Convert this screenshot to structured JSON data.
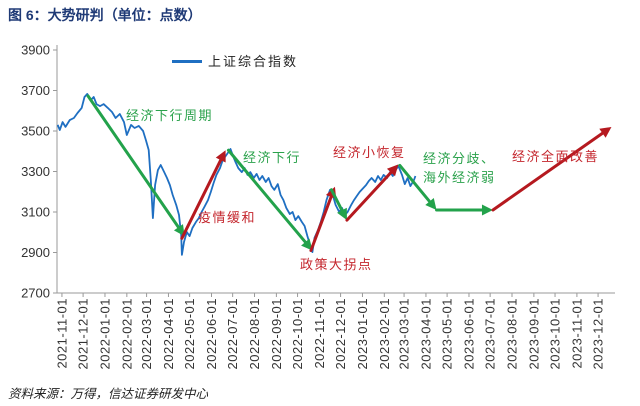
{
  "colors": {
    "title": "#1f3a76"
  },
  "source": "资料来源：万得，信达证券研发中心",
  "chart_data": {
    "type": "line",
    "title": "图 6：大势研判（单位：点数）",
    "xlim": [
      "2021-10-25",
      "2023-12-25"
    ],
    "ylim": [
      2700,
      3900
    ],
    "yticks": [
      3900,
      3700,
      3500,
      3300,
      3100,
      2900,
      2700
    ],
    "xticks": [
      "2021-11-01",
      "2021-12-01",
      "2022-01-01",
      "2022-02-01",
      "2022-03-01",
      "2022-04-01",
      "2022-05-01",
      "2022-06-01",
      "2022-07-01",
      "2022-08-01",
      "2022-09-01",
      "2022-10-01",
      "2022-11-01",
      "2022-12-01",
      "2023-01-01",
      "2023-02-01",
      "2023-03-01",
      "2023-04-01",
      "2023-05-01",
      "2023-06-01",
      "2023-07-01",
      "2023-08-01",
      "2023-09-01",
      "2023-10-01",
      "2023-11-01",
      "2023-12-01"
    ],
    "grid": false,
    "legend": "top-left",
    "series": [
      {
        "name": "上证综合指数",
        "color": "#1f6fc2",
        "x": [
          "2021-10-26",
          "2021-10-29",
          "2021-11-02",
          "2021-11-06",
          "2021-11-12",
          "2021-11-18",
          "2021-11-23",
          "2021-11-29",
          "2021-12-03",
          "2021-12-07",
          "2021-12-12",
          "2021-12-16",
          "2021-12-20",
          "2021-12-25",
          "2021-12-30",
          "2022-01-05",
          "2022-01-11",
          "2022-01-16",
          "2022-01-22",
          "2022-01-28",
          "2022-02-01",
          "2022-02-07",
          "2022-02-12",
          "2022-02-18",
          "2022-02-24",
          "2022-02-28",
          "2022-03-04",
          "2022-03-07",
          "2022-03-10",
          "2022-03-13",
          "2022-03-17",
          "2022-03-21",
          "2022-03-26",
          "2022-03-30",
          "2022-04-03",
          "2022-04-07",
          "2022-04-12",
          "2022-04-16",
          "2022-04-19",
          "2022-04-20",
          "2022-04-23",
          "2022-04-27",
          "2022-05-01",
          "2022-05-05",
          "2022-05-10",
          "2022-05-14",
          "2022-05-18",
          "2022-05-22",
          "2022-05-27",
          "2022-05-31",
          "2022-06-04",
          "2022-06-08",
          "2022-06-13",
          "2022-06-17",
          "2022-06-21",
          "2022-06-25",
          "2022-06-28",
          "2022-07-01",
          "2022-07-05",
          "2022-07-09",
          "2022-07-14",
          "2022-07-18",
          "2022-07-22",
          "2022-07-26",
          "2022-07-31",
          "2022-08-04",
          "2022-08-08",
          "2022-08-12",
          "2022-08-17",
          "2022-08-21",
          "2022-08-25",
          "2022-08-29",
          "2022-09-03",
          "2022-09-07",
          "2022-09-11",
          "2022-09-15",
          "2022-09-20",
          "2022-09-24",
          "2022-09-28",
          "2022-10-02",
          "2022-10-07",
          "2022-10-11",
          "2022-10-15",
          "2022-10-20",
          "2022-10-22",
          "2022-10-25",
          "2022-10-30",
          "2022-11-03",
          "2022-11-07",
          "2022-11-11",
          "2022-11-16",
          "2022-11-20",
          "2022-11-24",
          "2022-11-29",
          "2022-12-03",
          "2022-12-07",
          "2022-12-11",
          "2022-12-16",
          "2022-12-20",
          "2022-12-24",
          "2022-12-28",
          "2023-01-02",
          "2023-01-06",
          "2023-01-10",
          "2023-01-14",
          "2023-01-19",
          "2023-01-23",
          "2023-01-27",
          "2023-01-31",
          "2023-02-05",
          "2023-02-09",
          "2023-02-13",
          "2023-02-17",
          "2023-02-21",
          "2023-02-26",
          "2023-03-02",
          "2023-03-06",
          "2023-03-10",
          "2023-03-15",
          "2023-03-17"
        ],
        "values": [
          3530,
          3505,
          3544,
          3520,
          3554,
          3564,
          3589,
          3614,
          3668,
          3683,
          3653,
          3668,
          3633,
          3623,
          3633,
          3614,
          3594,
          3564,
          3584,
          3544,
          3480,
          3530,
          3515,
          3525,
          3500,
          3455,
          3406,
          3258,
          3070,
          3233,
          3307,
          3332,
          3297,
          3268,
          3233,
          3184,
          3135,
          3085,
          2986,
          2888,
          2952,
          3001,
          2981,
          3021,
          3051,
          3070,
          3100,
          3125,
          3159,
          3199,
          3243,
          3283,
          3317,
          3357,
          3376,
          3396,
          3411,
          3381,
          3347,
          3317,
          3297,
          3317,
          3283,
          3297,
          3268,
          3288,
          3258,
          3278,
          3248,
          3268,
          3228,
          3209,
          3238,
          3184,
          3159,
          3120,
          3090,
          3100,
          3060,
          3080,
          3051,
          3031,
          2981,
          2922,
          2902,
          2972,
          3011,
          3051,
          3100,
          3159,
          3209,
          3184,
          3135,
          3100,
          3120,
          3085,
          3100,
          3135,
          3159,
          3179,
          3199,
          3218,
          3233,
          3253,
          3268,
          3248,
          3278,
          3258,
          3283,
          3268,
          3297,
          3278,
          3307,
          3327,
          3283,
          3238,
          3268,
          3228,
          3258,
          3278
        ]
      }
    ],
    "annotations": {
      "arrows": [
        {
          "from": [
            "2021-12-08",
            3673
          ],
          "to": [
            "2022-04-24",
            2980
          ],
          "color": "#23a24b"
        },
        {
          "from": [
            "2022-04-20",
            2970
          ],
          "to": [
            "2022-06-21",
            3405
          ],
          "color": "#b5191f"
        },
        {
          "from": [
            "2022-06-25",
            3405
          ],
          "to": [
            "2022-10-22",
            2910
          ],
          "color": "#23a24b"
        },
        {
          "from": [
            "2022-10-20",
            2910
          ],
          "to": [
            "2022-11-23",
            3225
          ],
          "color": "#b5191f"
        },
        {
          "from": [
            "2022-11-18",
            3210
          ],
          "to": [
            "2022-12-10",
            3060
          ],
          "color": "#23a24b"
        },
        {
          "from": [
            "2022-12-10",
            3060
          ],
          "to": [
            "2023-02-21",
            3335
          ],
          "color": "#b5191f"
        },
        {
          "from": [
            "2023-02-23",
            3330
          ],
          "to": [
            "2023-04-16",
            3110
          ],
          "color": "#23a24b"
        },
        {
          "from": [
            "2023-04-16",
            3110
          ],
          "to": [
            "2023-07-05",
            3110
          ],
          "color": "#23a24b"
        },
        {
          "from": [
            "2023-07-05",
            3110
          ],
          "to": [
            "2023-12-20",
            3520
          ],
          "color": "#b5191f"
        }
      ],
      "labels": [
        {
          "text": "经济下行周期",
          "color": "#2ba24c"
        },
        {
          "text": "疫情缓和",
          "color": "#c4262d"
        },
        {
          "text": "经济下行",
          "color": "#2ba24c"
        },
        {
          "text": "政策大拐点",
          "color": "#c4262d"
        },
        {
          "text": "经济小恢复",
          "color": "#c4262d"
        },
        {
          "text": "经济分歧、",
          "color": "#2ba24c"
        },
        {
          "text": "海外经济弱",
          "color": "#2ba24c"
        },
        {
          "text": "经济全面改善",
          "color": "#c4262d"
        }
      ]
    }
  }
}
